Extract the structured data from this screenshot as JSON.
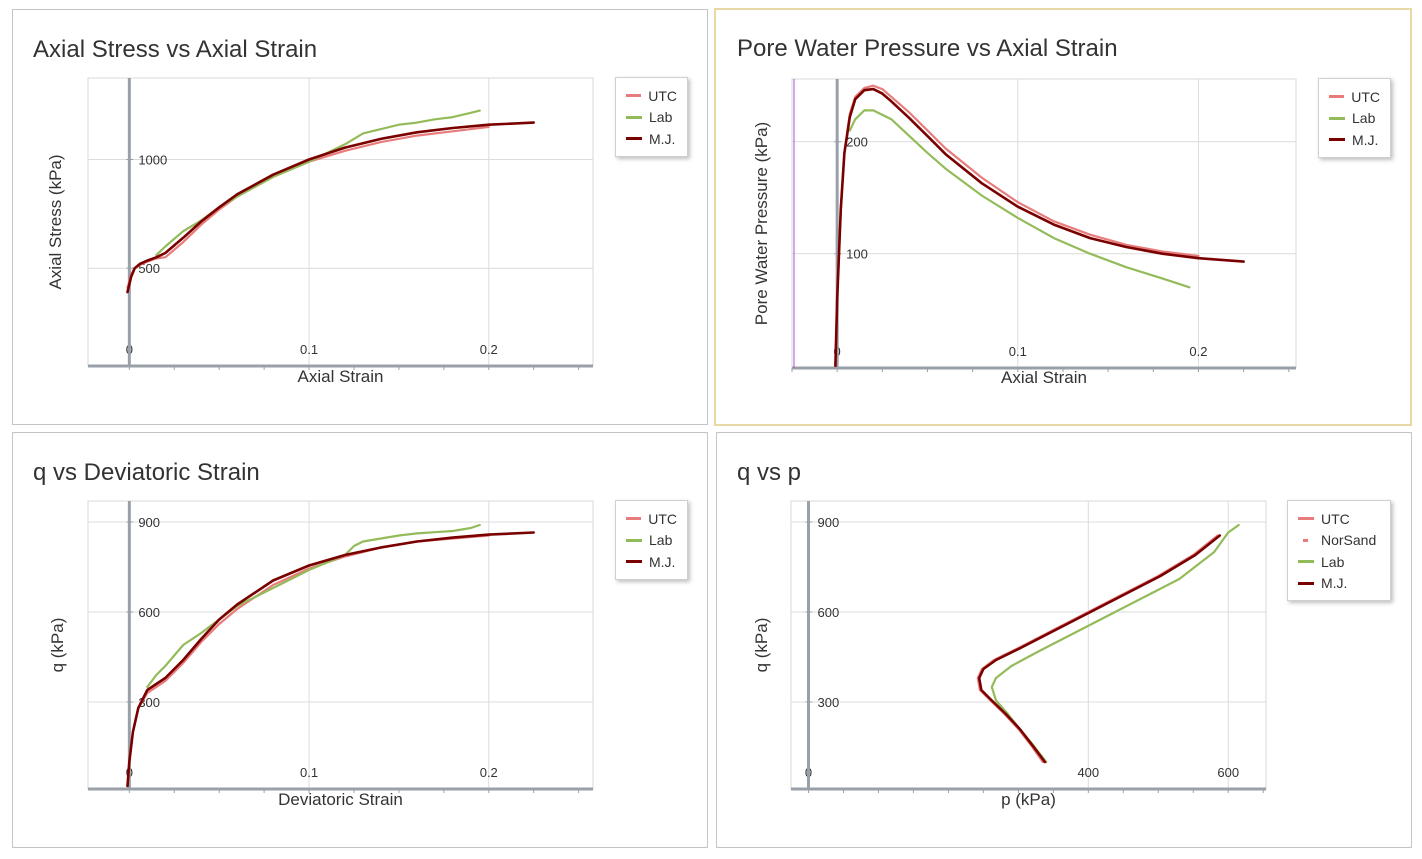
{
  "panels": [
    {
      "title": "Axial Stress vs Axial Strain",
      "chart_data": {
        "type": "line",
        "title": "Axial Stress vs Axial Strain",
        "xlabel": "Axial Strain",
        "ylabel": "Axial Stress (kPa)",
        "xlim": [
          -0.023,
          0.258
        ],
        "ylim": [
          50,
          1375
        ],
        "xticks": [
          0,
          0.1,
          0.2
        ],
        "xtick_labels": [
          "0",
          "0.1",
          "0.2"
        ],
        "yticks": [
          500,
          1000
        ],
        "ytick_labels": [
          "500",
          "1000"
        ],
        "grid": true,
        "legend_position": "top-right",
        "series": [
          {
            "name": "UTC",
            "color": "#e87c7c",
            "x": [
              -0.001,
              0.001,
              0.003,
              0.006,
              0.01,
              0.015,
              0.02,
              0.03,
              0.04,
              0.05,
              0.06,
              0.08,
              0.1,
              0.12,
              0.14,
              0.16,
              0.18,
              0.2
            ],
            "y": [
              410,
              470,
              500,
              515,
              530,
              545,
              550,
              620,
              700,
              770,
              830,
              920,
              990,
              1040,
              1080,
              1110,
              1130,
              1150
            ]
          },
          {
            "name": "Lab",
            "color": "#94bb5a",
            "x": [
              0.015,
              0.02,
              0.03,
              0.04,
              0.05,
              0.06,
              0.08,
              0.1,
              0.11,
              0.12,
              0.13,
              0.14,
              0.15,
              0.16,
              0.17,
              0.18,
              0.19,
              0.195
            ],
            "y": [
              560,
              600,
              670,
              720,
              780,
              830,
              920,
              990,
              1030,
              1070,
              1120,
              1140,
              1160,
              1170,
              1185,
              1195,
              1215,
              1225
            ]
          },
          {
            "name": "M.J.",
            "color": "#7a0000",
            "x": [
              -0.001,
              0.001,
              0.003,
              0.006,
              0.01,
              0.015,
              0.02,
              0.03,
              0.04,
              0.05,
              0.06,
              0.08,
              0.1,
              0.12,
              0.14,
              0.16,
              0.18,
              0.2,
              0.225
            ],
            "y": [
              390,
              460,
              500,
              520,
              535,
              550,
              570,
              640,
              715,
              780,
              840,
              930,
              1000,
              1055,
              1095,
              1125,
              1145,
              1160,
              1170
            ]
          }
        ]
      }
    },
    {
      "title": "Pore Water Pressure vs Axial Strain",
      "chart_data": {
        "type": "line",
        "title": "Pore Water Pressure vs Axial Strain",
        "xlabel": "Axial Strain",
        "ylabel": "Pore Water Pressure (kPa)",
        "xlim": [
          -0.025,
          0.254
        ],
        "ylim": [
          -2,
          256
        ],
        "xticks": [
          0,
          0.1,
          0.2
        ],
        "xtick_labels": [
          "0",
          "0.1",
          "0.2"
        ],
        "yticks": [
          100,
          200
        ],
        "ytick_labels": [
          "100",
          "200"
        ],
        "grid": true,
        "legend_position": "top-right",
        "series": [
          {
            "name": "UTC",
            "color": "#e87c7c",
            "x": [
              -0.001,
              0.0,
              0.002,
              0.004,
              0.007,
              0.01,
              0.015,
              0.02,
              0.025,
              0.03,
              0.04,
              0.05,
              0.06,
              0.08,
              0.1,
              0.12,
              0.14,
              0.16,
              0.18,
              0.2
            ],
            "y": [
              0,
              60,
              140,
              190,
              225,
              240,
              248,
              250,
              247,
              240,
              226,
              210,
              194,
              168,
              146,
              129,
              117,
              108,
              102,
              98
            ]
          },
          {
            "name": "Lab",
            "color": "#94bb5a",
            "x": [
              0.007,
              0.01,
              0.015,
              0.02,
              0.03,
              0.04,
              0.05,
              0.06,
              0.08,
              0.1,
              0.12,
              0.14,
              0.16,
              0.18,
              0.195
            ],
            "y": [
              210,
              220,
              228,
              228,
              220,
              205,
              190,
              176,
              152,
              132,
              114,
              100,
              88,
              78,
              70
            ]
          },
          {
            "name": "M.J.",
            "color": "#7a0000",
            "x": [
              -0.001,
              0.0,
              0.002,
              0.004,
              0.007,
              0.01,
              0.015,
              0.02,
              0.025,
              0.03,
              0.04,
              0.05,
              0.06,
              0.08,
              0.1,
              0.12,
              0.14,
              0.16,
              0.18,
              0.2,
              0.225
            ],
            "y": [
              0,
              60,
              140,
              190,
              222,
              238,
              246,
              247,
              243,
              236,
              221,
              205,
              189,
              163,
              142,
              126,
              114,
              106,
              100,
              96,
              93
            ]
          }
        ]
      }
    },
    {
      "title": "q vs Deviatoric Strain",
      "chart_data": {
        "type": "line",
        "title": "q vs Deviatoric Strain",
        "xlabel": "Deviatoric Strain",
        "ylabel": "q (kPa)",
        "xlim": [
          -0.023,
          0.258
        ],
        "ylim": [
          10,
          970
        ],
        "xticks": [
          0,
          0.1,
          0.2
        ],
        "xtick_labels": [
          "0",
          "0.1",
          "0.2"
        ],
        "yticks": [
          300,
          600,
          900
        ],
        "ytick_labels": [
          "300",
          "600",
          "900"
        ],
        "grid": true,
        "legend_position": "top-right",
        "series": [
          {
            "name": "UTC",
            "color": "#e87c7c",
            "x": [
              -0.001,
              0.0,
              0.002,
              0.005,
              0.01,
              0.02,
              0.03,
              0.04,
              0.05,
              0.06,
              0.08,
              0.1,
              0.12,
              0.14,
              0.16,
              0.18,
              0.2
            ],
            "y": [
              20,
              100,
              200,
              280,
              330,
              370,
              430,
              500,
              560,
              610,
              690,
              745,
              785,
              815,
              835,
              845,
              855
            ]
          },
          {
            "name": "Lab",
            "color": "#94bb5a",
            "x": [
              0.01,
              0.015,
              0.02,
              0.03,
              0.04,
              0.05,
              0.06,
              0.07,
              0.08,
              0.1,
              0.12,
              0.125,
              0.13,
              0.14,
              0.15,
              0.16,
              0.17,
              0.18,
              0.19,
              0.195
            ],
            "y": [
              350,
              390,
              420,
              490,
              530,
              575,
              620,
              650,
              680,
              740,
              790,
              820,
              835,
              845,
              855,
              862,
              866,
              870,
              880,
              890
            ]
          },
          {
            "name": "M.J.",
            "color": "#7a0000",
            "x": [
              -0.001,
              0.0,
              0.002,
              0.005,
              0.01,
              0.02,
              0.03,
              0.04,
              0.05,
              0.06,
              0.08,
              0.1,
              0.12,
              0.14,
              0.16,
              0.18,
              0.2,
              0.225
            ],
            "y": [
              20,
              100,
              200,
              280,
              340,
              380,
              440,
              510,
              575,
              625,
              705,
              755,
              790,
              815,
              835,
              848,
              858,
              865
            ]
          }
        ]
      }
    },
    {
      "title": "q vs p",
      "chart_data": {
        "type": "line",
        "title": "q vs p",
        "xlabel": "p (kPa)",
        "ylabel": "q (kPa)",
        "xlim": [
          -25,
          654
        ],
        "ylim": [
          10,
          970
        ],
        "xticks": [
          0,
          400,
          600
        ],
        "xtick_labels": [
          "0",
          "400",
          "600"
        ],
        "yticks": [
          300,
          600,
          900
        ],
        "ytick_labels": [
          "300",
          "600",
          "900"
        ],
        "grid": true,
        "legend_position": "top-right",
        "series": [
          {
            "name": "UTC",
            "color": "#e87c7c",
            "x": [
              335,
              320,
              300,
              280,
              260,
              245,
              242,
              248,
              265,
              300,
              350,
              400,
              450,
              500,
              550,
              585
            ],
            "y": [
              100,
              150,
              210,
              260,
              305,
              340,
              380,
              410,
              440,
              480,
              540,
              600,
              660,
              720,
              790,
              855
            ]
          },
          {
            "name": "NorSand",
            "color": "#e87c7c",
            "x": [
              336,
              321,
              301,
              281,
              261,
              246,
              243,
              249,
              266,
              301,
              351,
              401,
              451,
              501,
              551,
              586
            ],
            "y": [
              100,
              150,
              210,
              260,
              305,
              340,
              380,
              410,
              440,
              480,
              540,
              600,
              660,
              720,
              790,
              855
            ]
          },
          {
            "name": "Lab",
            "color": "#94bb5a",
            "x": [
              340,
              320,
              300,
              285,
              268,
              262,
              268,
              290,
              330,
              380,
              430,
              480,
              530,
              580,
              600,
              615
            ],
            "y": [
              100,
              160,
              215,
              260,
              305,
              350,
              380,
              420,
              470,
              530,
              590,
              650,
              710,
              800,
              865,
              890
            ]
          },
          {
            "name": "M.J.",
            "color": "#7a0000",
            "x": [
              338,
              322,
              302,
              282,
              262,
              247,
              244,
              250,
              268,
              303,
              353,
              403,
              453,
              503,
              553,
              588
            ],
            "y": [
              100,
              150,
              210,
              260,
              305,
              340,
              380,
              410,
              440,
              480,
              540,
              600,
              660,
              720,
              790,
              855
            ]
          }
        ]
      }
    }
  ]
}
